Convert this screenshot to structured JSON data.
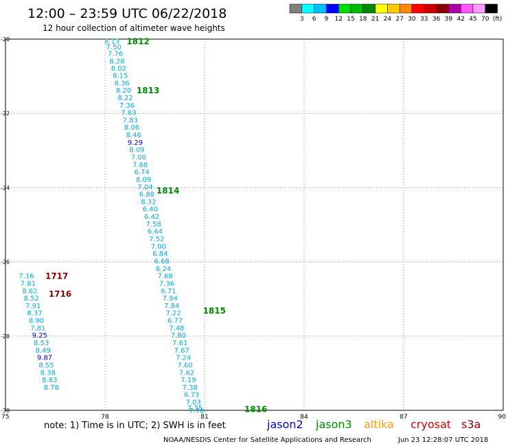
{
  "header": {
    "title": "12:00 – 23:59 UTC 06/22/2018",
    "subtitle": "12 hour collection of altimeter wave heights"
  },
  "legend_scale": {
    "labels": [
      "3",
      "6",
      "9",
      "12",
      "15",
      "18",
      "21",
      "24",
      "27",
      "30",
      "33",
      "36",
      "39",
      "42",
      "45",
      "70",
      "(ft)"
    ],
    "colors": [
      "#808080",
      "#00ffff",
      "#00bfff",
      "#0000ff",
      "#00e000",
      "#00bb00",
      "#008800",
      "#ffff00",
      "#ffcc00",
      "#ff8800",
      "#ff0000",
      "#cc0000",
      "#880000",
      "#aa00aa",
      "#ff55ff",
      "#ff99ff",
      "#000000"
    ]
  },
  "footer": {
    "note": "note:  1) Time is in UTC;  2) SWH is in feet",
    "satellites": [
      {
        "name": "jason2",
        "color": "#0000cc"
      },
      {
        "name": "jason3",
        "color": "#008800"
      },
      {
        "name": "altika",
        "color": "#ff9900"
      },
      {
        "name": "cryosat",
        "color": "#cc0000"
      },
      {
        "name": "s3a",
        "color": "#880000"
      }
    ],
    "credit": "NOAA/NESDIS Center for Satellite Applications and Research",
    "timestamp": "Jun 23 12:28:07 UTC 2018"
  },
  "colors": {
    "light_blue": "#00aadd",
    "dark_blue": "#0000cc",
    "green": "#008800",
    "maroon": "#880000"
  },
  "chart_data": {
    "type": "scatter",
    "title": "12:00 – 23:59 UTC 06/22/2018",
    "subtitle": "12 hour collection of altimeter wave heights",
    "x_ticks": [
      "75",
      "78",
      "81",
      "84",
      "87",
      "90"
    ],
    "y_ticks": [
      "-20",
      "-22",
      "-24",
      "-26",
      "-28",
      "-30"
    ],
    "xlim": [
      75,
      90
    ],
    "ylim": [
      -30,
      -20
    ],
    "grid": true,
    "value_unit": "ft",
    "series": [
      {
        "name": "jason3",
        "color_note": "light blue labels, dark blue above 9 ft",
        "points": [
          {
            "x": 77.98,
            "y": -20.05,
            "v": "8.13"
          },
          {
            "x": 78.03,
            "y": -20.2,
            "v": "7.50"
          },
          {
            "x": 78.08,
            "y": -20.38,
            "v": "7.76"
          },
          {
            "x": 78.13,
            "y": -20.58,
            "v": "8.28"
          },
          {
            "x": 78.18,
            "y": -20.78,
            "v": "8.02"
          },
          {
            "x": 78.23,
            "y": -20.97,
            "v": "8.15"
          },
          {
            "x": 78.28,
            "y": -21.17,
            "v": "8.36"
          },
          {
            "x": 78.33,
            "y": -21.37,
            "v": "8.20"
          },
          {
            "x": 78.38,
            "y": -21.57,
            "v": "8.22"
          },
          {
            "x": 78.43,
            "y": -21.77,
            "v": "7.36"
          },
          {
            "x": 78.48,
            "y": -21.97,
            "v": "7.83"
          },
          {
            "x": 78.53,
            "y": -22.17,
            "v": "7.83"
          },
          {
            "x": 78.58,
            "y": -22.37,
            "v": "8.06"
          },
          {
            "x": 78.63,
            "y": -22.57,
            "v": "8.46"
          },
          {
            "x": 78.68,
            "y": -22.77,
            "v": "9.29"
          },
          {
            "x": 78.73,
            "y": -22.97,
            "v": "8.09"
          },
          {
            "x": 78.78,
            "y": -23.17,
            "v": "7.00"
          },
          {
            "x": 78.83,
            "y": -23.37,
            "v": "7.68"
          },
          {
            "x": 78.88,
            "y": -23.57,
            "v": "6.74"
          },
          {
            "x": 78.93,
            "y": -23.77,
            "v": "8.09"
          },
          {
            "x": 78.98,
            "y": -23.97,
            "v": "7.04"
          },
          {
            "x": 79.03,
            "y": -24.17,
            "v": "6.88"
          },
          {
            "x": 79.08,
            "y": -24.37,
            "v": "8.32"
          },
          {
            "x": 79.13,
            "y": -24.57,
            "v": "6.40"
          },
          {
            "x": 79.18,
            "y": -24.77,
            "v": "6.42"
          },
          {
            "x": 79.23,
            "y": -24.97,
            "v": "7.58"
          },
          {
            "x": 79.28,
            "y": -25.17,
            "v": "6.64"
          },
          {
            "x": 79.33,
            "y": -25.37,
            "v": "7.52"
          },
          {
            "x": 79.38,
            "y": -25.57,
            "v": "7.00"
          },
          {
            "x": 79.43,
            "y": -25.77,
            "v": "6.84"
          },
          {
            "x": 79.48,
            "y": -25.97,
            "v": "6.68"
          },
          {
            "x": 79.53,
            "y": -26.17,
            "v": "6.24"
          },
          {
            "x": 79.58,
            "y": -26.37,
            "v": "7.68"
          },
          {
            "x": 79.63,
            "y": -26.57,
            "v": "7.36"
          },
          {
            "x": 79.68,
            "y": -26.77,
            "v": "6.71"
          },
          {
            "x": 79.73,
            "y": -26.97,
            "v": "7.94"
          },
          {
            "x": 79.78,
            "y": -27.17,
            "v": "7.84"
          },
          {
            "x": 79.83,
            "y": -27.37,
            "v": "7.22"
          },
          {
            "x": 79.88,
            "y": -27.57,
            "v": "6.77"
          },
          {
            "x": 79.93,
            "y": -27.77,
            "v": "7.48"
          },
          {
            "x": 79.98,
            "y": -27.97,
            "v": "7.80"
          },
          {
            "x": 80.03,
            "y": -28.17,
            "v": "7.61"
          },
          {
            "x": 80.08,
            "y": -28.37,
            "v": "7.67"
          },
          {
            "x": 80.13,
            "y": -28.57,
            "v": "7.24"
          },
          {
            "x": 80.18,
            "y": -28.77,
            "v": "7.60"
          },
          {
            "x": 80.23,
            "y": -28.97,
            "v": "7.62"
          },
          {
            "x": 80.28,
            "y": -29.17,
            "v": "7.19"
          },
          {
            "x": 80.33,
            "y": -29.37,
            "v": "7.38"
          },
          {
            "x": 80.38,
            "y": -29.57,
            "v": "6.73"
          },
          {
            "x": 80.43,
            "y": -29.77,
            "v": "7.03"
          },
          {
            "x": 80.48,
            "y": -29.93,
            "v": "7.35"
          },
          {
            "x": 80.53,
            "y": -30.0,
            "v": "7.70"
          }
        ],
        "time_labels": [
          {
            "x": 78.65,
            "y": -20.05,
            "t": "1812"
          },
          {
            "x": 78.95,
            "y": -21.37,
            "t": "1813"
          },
          {
            "x": 79.55,
            "y": -24.07,
            "t": "1814"
          },
          {
            "x": 80.95,
            "y": -27.3,
            "t": "1815"
          },
          {
            "x": 82.2,
            "y": -29.95,
            "t": "1816"
          }
        ]
      },
      {
        "name": "cryosat",
        "color_note": "light blue labels, dark blue above 9 ft",
        "points": [
          {
            "x": 75.4,
            "y": -26.37,
            "v": "7.16"
          },
          {
            "x": 75.45,
            "y": -26.57,
            "v": "7.81"
          },
          {
            "x": 75.5,
            "y": -26.77,
            "v": "8.62"
          },
          {
            "x": 75.55,
            "y": -26.97,
            "v": "8.52"
          },
          {
            "x": 75.6,
            "y": -27.17,
            "v": "7.91"
          },
          {
            "x": 75.65,
            "y": -27.37,
            "v": "8.37"
          },
          {
            "x": 75.7,
            "y": -27.57,
            "v": "8.90"
          },
          {
            "x": 75.75,
            "y": -27.77,
            "v": "7.81"
          },
          {
            "x": 75.8,
            "y": -27.97,
            "v": "9.25"
          },
          {
            "x": 75.85,
            "y": -28.17,
            "v": "8.53"
          },
          {
            "x": 75.9,
            "y": -28.37,
            "v": "8.49"
          },
          {
            "x": 75.95,
            "y": -28.57,
            "v": "9.87"
          },
          {
            "x": 76.0,
            "y": -28.77,
            "v": "8.55"
          },
          {
            "x": 76.05,
            "y": -28.97,
            "v": "8.38"
          },
          {
            "x": 76.1,
            "y": -29.17,
            "v": "8.83"
          },
          {
            "x": 76.15,
            "y": -29.37,
            "v": "8.78"
          }
        ],
        "time_labels": [
          {
            "x": 76.2,
            "y": -26.37,
            "t": "1717"
          },
          {
            "x": 76.3,
            "y": -26.85,
            "t": "1716"
          }
        ]
      }
    ]
  }
}
